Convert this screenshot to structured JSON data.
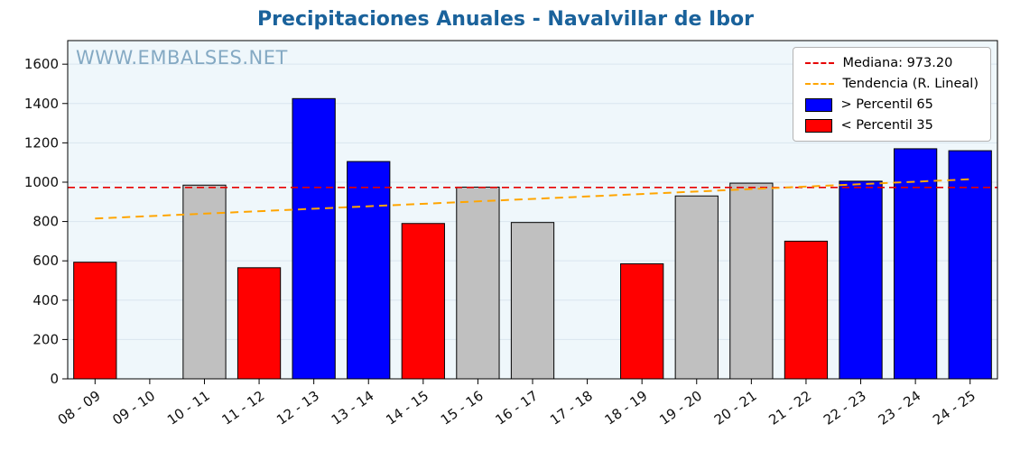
{
  "title": "Precipitaciones Anuales - Navalvillar de Ibor",
  "watermark": "WWW.EMBALSES.NET",
  "legend": {
    "items": [
      {
        "type": "line",
        "icon": "median-line-icon",
        "color": "#e60000",
        "label": "Mediana: 973.20"
      },
      {
        "type": "line",
        "icon": "trend-line-icon",
        "color": "#ffa500",
        "label": "Tendencia (R. Lineal)"
      },
      {
        "type": "patch",
        "icon": "percentil65-swatch-icon",
        "color": "#0000ff",
        "label": "> Percentil 65"
      },
      {
        "type": "patch",
        "icon": "percentil35-swatch-icon",
        "color": "#ff0000",
        "label": "< Percentil 35"
      }
    ]
  },
  "chart_data": {
    "type": "bar",
    "title": "Precipitaciones Anuales - Navalvillar de Ibor",
    "xlabel": "",
    "ylabel": "",
    "categories": [
      "08 - 09",
      "09 - 10",
      "10 - 11",
      "11 - 12",
      "12 - 13",
      "13 - 14",
      "14 - 15",
      "15 - 16",
      "16 - 17",
      "17 - 18",
      "18 - 19",
      "19 - 20",
      "20 - 21",
      "21 - 22",
      "22 - 23",
      "23 - 24",
      "24 - 25"
    ],
    "values": [
      593,
      null,
      985,
      565,
      1425,
      1105,
      790,
      975,
      795,
      null,
      585,
      930,
      995,
      700,
      1005,
      1170,
      1160
    ],
    "bands": [
      "low",
      null,
      "mid",
      "low",
      "high",
      "high",
      "low",
      "mid",
      "mid",
      null,
      "low",
      "mid",
      "mid",
      "low",
      "high",
      "high",
      "high"
    ],
    "median": 973.2,
    "trend": {
      "start": 815,
      "end": 1015
    },
    "ylim": [
      0,
      1720
    ],
    "yticks": [
      0,
      200,
      400,
      600,
      800,
      1000,
      1200,
      1400,
      1600
    ],
    "grid": true,
    "legend_position": "upper right",
    "colors": {
      "high": "#0000ff",
      "low": "#ff0000",
      "mid": "#c0c0c0",
      "bar_edge": "#000000",
      "median": "#e60000",
      "trend": "#ffa500",
      "plot_bg": "#eff7fb",
      "grid": "#d9e6ef",
      "title": "#1a629b",
      "watermark": "#84a9c3"
    }
  }
}
